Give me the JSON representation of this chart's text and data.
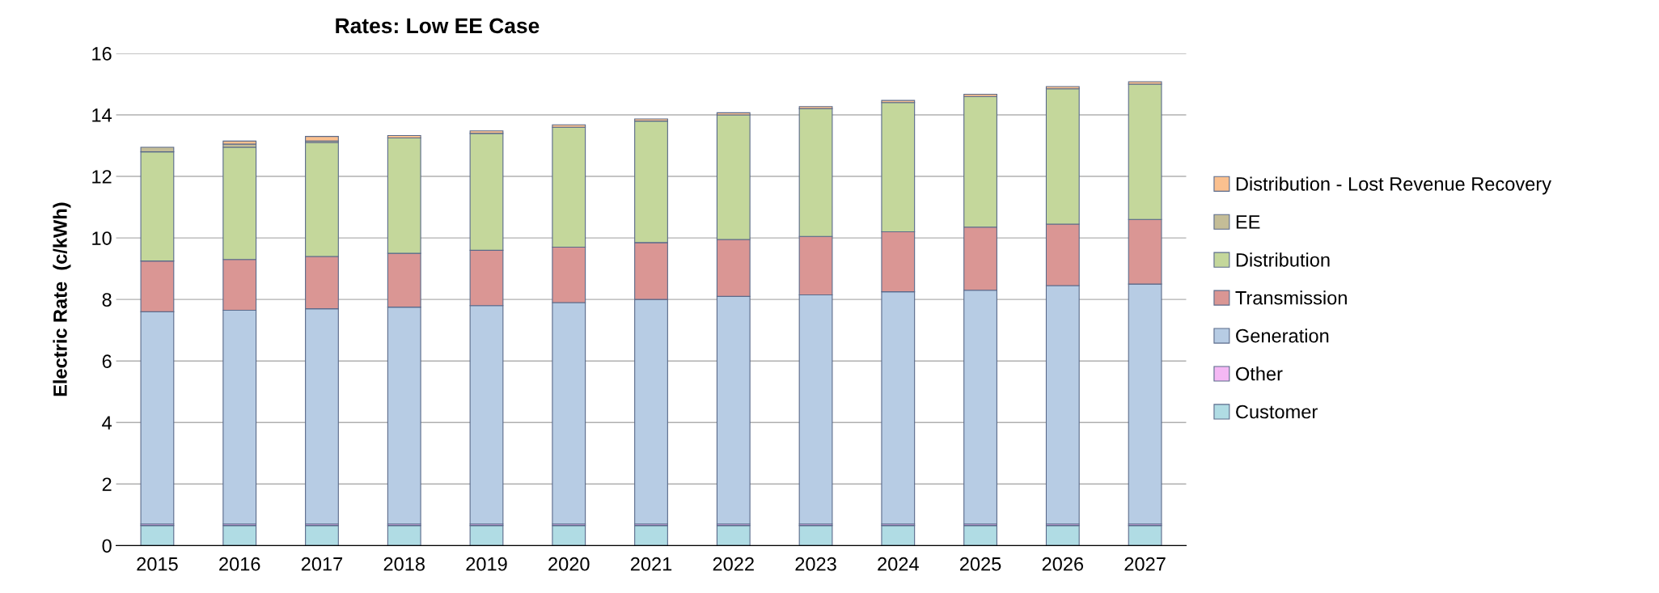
{
  "chart_data": {
    "type": "bar",
    "title": "Rates: Low EE Case",
    "ylabel": "Electric Rate  (c/kWh)",
    "categories": [
      "2015",
      "2016",
      "2017",
      "2018",
      "2019",
      "2020",
      "2021",
      "2022",
      "2023",
      "2024",
      "2025",
      "2026",
      "2027"
    ],
    "stacked": true,
    "ylim": [
      0,
      16
    ],
    "yticks": [
      0,
      2,
      4,
      6,
      8,
      10,
      12,
      14,
      16
    ],
    "grid": "y",
    "legend": "right",
    "series": [
      {
        "name": "Customer",
        "color": "#b0dce4",
        "values": [
          0.65,
          0.65,
          0.65,
          0.65,
          0.65,
          0.65,
          0.65,
          0.65,
          0.65,
          0.65,
          0.65,
          0.65,
          0.65
        ]
      },
      {
        "name": "Other",
        "color": "#f4b8f4",
        "values": [
          0.05,
          0.05,
          0.05,
          0.05,
          0.05,
          0.05,
          0.05,
          0.05,
          0.05,
          0.05,
          0.05,
          0.05,
          0.05
        ]
      },
      {
        "name": "Generation",
        "color": "#b7cce4",
        "values": [
          6.9,
          6.95,
          7.0,
          7.05,
          7.1,
          7.2,
          7.3,
          7.4,
          7.45,
          7.55,
          7.6,
          7.75,
          7.8
        ]
      },
      {
        "name": "Transmission",
        "color": "#da9694",
        "values": [
          1.65,
          1.65,
          1.7,
          1.75,
          1.8,
          1.8,
          1.85,
          1.85,
          1.9,
          1.95,
          2.05,
          2.0,
          2.1
        ]
      },
      {
        "name": "Distribution",
        "color": "#c4d79b",
        "values": [
          3.55,
          3.65,
          3.7,
          3.75,
          3.8,
          3.9,
          3.95,
          4.05,
          4.15,
          4.2,
          4.25,
          4.4,
          4.4
        ]
      },
      {
        "name": "EE",
        "color": "#c4bd97",
        "values": [
          0.15,
          0.1,
          0.05,
          null,
          null,
          null,
          null,
          null,
          null,
          null,
          null,
          null,
          null
        ]
      },
      {
        "name": "Distribution - Lost Revenue Recovery",
        "color": "#fac08f",
        "values": [
          null,
          0.1,
          0.15,
          0.08,
          0.08,
          0.08,
          0.07,
          0.07,
          0.07,
          0.07,
          0.07,
          0.07,
          0.08
        ]
      }
    ]
  }
}
